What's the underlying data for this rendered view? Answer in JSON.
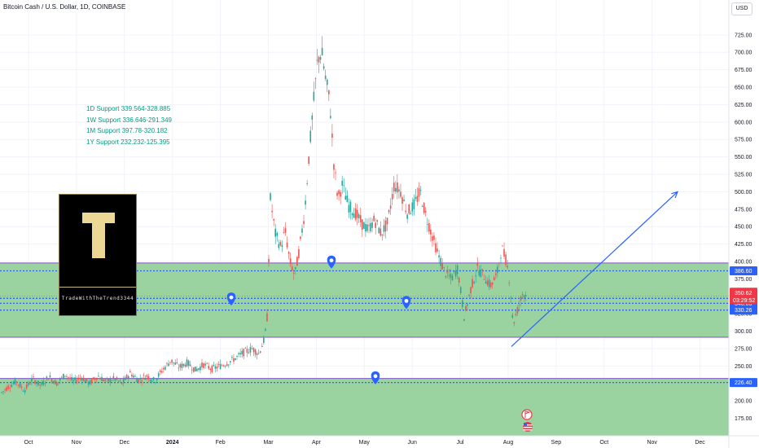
{
  "header": {
    "title": "Bitcoin Cash / U.S. Dollar, 1D, COINBASE",
    "currency": "USD"
  },
  "annotations": [
    "1D Support 339.564-328.885",
    "1W Support 336.646-291.349",
    "1M Support 397.78-320.182",
    "1Y Support 232.232-125.395"
  ],
  "logo": {
    "letter": "T",
    "text": "TradeWithTheTrend3344"
  },
  "colors": {
    "zone": "#8fcd96",
    "zone_border": "#7e57c2",
    "blue": "#2962ff",
    "up": "#26a69a",
    "down": "#ef5350",
    "price_label": "#f23645",
    "level_label": "#2962ff"
  },
  "chart_data": {
    "type": "candlestick",
    "y_axis": {
      "range": [
        150,
        740
      ],
      "ticks": [
        "175.00",
        "200.00",
        "225.00",
        "250.00",
        "275.00",
        "300.00",
        "325.00",
        "350.00",
        "375.00",
        "400.00",
        "425.00",
        "450.00",
        "475.00",
        "500.00",
        "525.00",
        "550.00",
        "575.00",
        "600.00",
        "625.00",
        "650.00",
        "675.00",
        "700.00",
        "725.00"
      ]
    },
    "x_axis": {
      "labels": [
        "Oct",
        "Nov",
        "Dec",
        "2024",
        "Feb",
        "Mar",
        "Apr",
        "May",
        "Jun",
        "Jul",
        "Aug",
        "Sep",
        "Oct",
        "Nov",
        "Dec"
      ],
      "bold_labels": [
        "2024"
      ]
    },
    "zones": [
      {
        "top": 397.78,
        "bottom": 291.349
      },
      {
        "top": 232.232,
        "bottom": 150
      }
    ],
    "levels": [
      386.6,
      347.1,
      340.03,
      330.26,
      226.4
    ],
    "current_price": {
      "value": 350.62,
      "countdown": "03:29:52"
    },
    "level_labels": [
      "386.60",
      "347.10",
      "340.03",
      "330.26",
      "226.40"
    ],
    "price_path": [
      [
        0,
        210
      ],
      [
        10,
        220
      ],
      [
        20,
        228
      ],
      [
        30,
        215
      ],
      [
        40,
        232
      ],
      [
        50,
        222
      ],
      [
        60,
        235
      ],
      [
        70,
        225
      ],
      [
        80,
        238
      ],
      [
        90,
        228
      ],
      [
        100,
        234
      ],
      [
        110,
        225
      ],
      [
        120,
        236
      ],
      [
        130,
        228
      ],
      [
        140,
        232
      ],
      [
        150,
        225
      ],
      [
        160,
        240
      ],
      [
        170,
        230
      ],
      [
        180,
        236
      ],
      [
        190,
        229
      ],
      [
        200,
        245
      ],
      [
        210,
        258
      ],
      [
        220,
        248
      ],
      [
        230,
        255
      ],
      [
        240,
        244
      ],
      [
        250,
        252
      ],
      [
        260,
        246
      ],
      [
        270,
        250
      ],
      [
        280,
        255
      ],
      [
        290,
        262
      ],
      [
        300,
        270
      ],
      [
        310,
        275
      ],
      [
        318,
        268
      ],
      [
        325,
        290
      ],
      [
        328,
        320
      ],
      [
        332,
        490
      ],
      [
        338,
        440
      ],
      [
        345,
        420
      ],
      [
        350,
        445
      ],
      [
        356,
        400
      ],
      [
        362,
        380
      ],
      [
        368,
        420
      ],
      [
        374,
        470
      ],
      [
        380,
        560
      ],
      [
        386,
        640
      ],
      [
        390,
        690
      ],
      [
        395,
        700
      ],
      [
        400,
        660
      ],
      [
        405,
        630
      ],
      [
        410,
        540
      ],
      [
        415,
        490
      ],
      [
        420,
        510
      ],
      [
        428,
        480
      ],
      [
        436,
        470
      ],
      [
        444,
        455
      ],
      [
        452,
        445
      ],
      [
        460,
        460
      ],
      [
        468,
        440
      ],
      [
        476,
        455
      ],
      [
        484,
        510
      ],
      [
        492,
        500
      ],
      [
        500,
        470
      ],
      [
        508,
        480
      ],
      [
        516,
        500
      ],
      [
        522,
        470
      ],
      [
        530,
        440
      ],
      [
        538,
        410
      ],
      [
        546,
        385
      ],
      [
        554,
        375
      ],
      [
        562,
        390
      ],
      [
        570,
        320
      ],
      [
        578,
        360
      ],
      [
        586,
        390
      ],
      [
        594,
        380
      ],
      [
        602,
        365
      ],
      [
        610,
        380
      ],
      [
        616,
        420
      ],
      [
        622,
        400
      ],
      [
        626,
        370
      ],
      [
        630,
        310
      ],
      [
        634,
        325
      ],
      [
        638,
        340
      ],
      [
        642,
        355
      ],
      [
        647,
        350.62
      ]
    ],
    "trend_arrow": {
      "start": [
        628,
        278
      ],
      "end": [
        832,
        500
      ]
    },
    "markers": [
      [
        284,
        345
      ],
      [
        407,
        398
      ],
      [
        499,
        340
      ],
      [
        461,
        232
      ]
    ]
  }
}
